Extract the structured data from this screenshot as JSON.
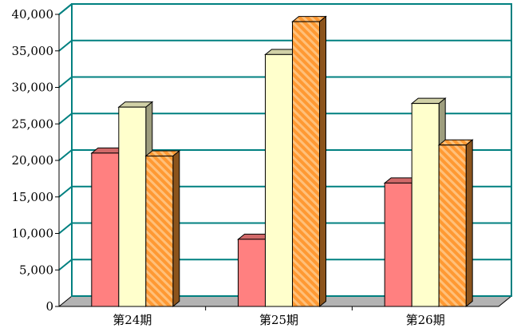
{
  "chart_data": {
    "type": "bar",
    "title": "",
    "xlabel": "",
    "ylabel": "",
    "categories": [
      "第24期",
      "第25期",
      "第26期"
    ],
    "series": [
      {
        "values": [
          21000,
          9200,
          16900
        ],
        "color": "#ff8080"
      },
      {
        "values": [
          27300,
          34500,
          27800
        ],
        "color": "#ffffcc"
      },
      {
        "values": [
          20600,
          39000,
          22100
        ],
        "color": "#ff9933",
        "pattern": "diagonal-stripes"
      }
    ],
    "ylim": [
      0,
      40000
    ],
    "yticks": [
      "0",
      "5,000",
      "10,000",
      "15,000",
      "20,000",
      "25,000",
      "30,000",
      "35,000",
      "40,000"
    ],
    "grid": true,
    "grid_color": "#008080",
    "floor_color": "#b3b3b3",
    "legend": "none",
    "style": "3d-clustered"
  }
}
